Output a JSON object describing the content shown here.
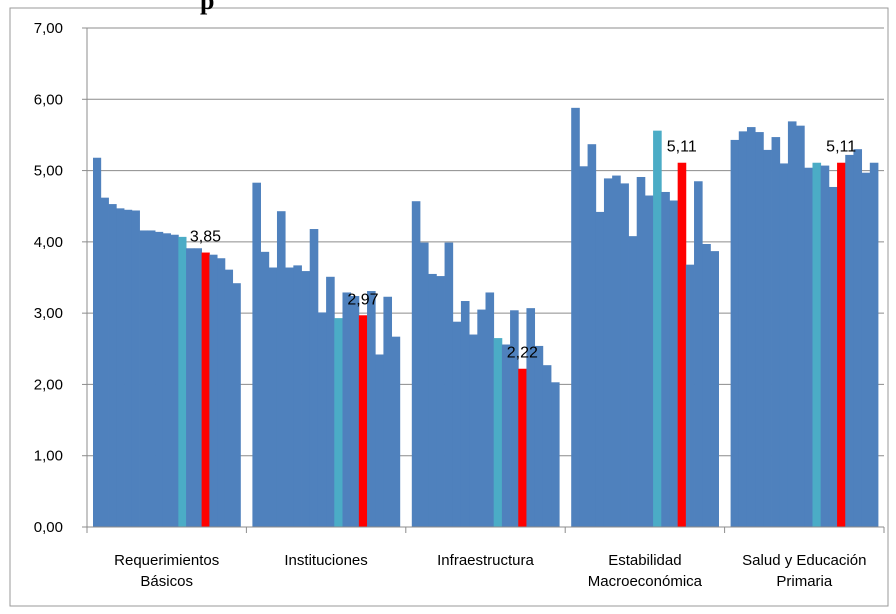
{
  "chart_data": {
    "type": "bar",
    "title": "p",
    "xlabel": "",
    "ylabel": "",
    "ylim": [
      0,
      7
    ],
    "y_ticks": [
      "0,00",
      "1,00",
      "2,00",
      "3,00",
      "4,00",
      "5,00",
      "6,00",
      "7,00"
    ],
    "grid": true,
    "legend": "none",
    "colors": {
      "default": "#4F81BD",
      "teal": "#4BACC6",
      "red": "#FF0000"
    },
    "groups": [
      {
        "label_lines": [
          "Requerimientos",
          "Básicos"
        ],
        "values": [
          5.18,
          4.62,
          4.53,
          4.47,
          4.45,
          4.44,
          4.16,
          4.16,
          4.14,
          4.12,
          4.1,
          4.07,
          3.91,
          3.91,
          3.85,
          3.82,
          3.77,
          3.61,
          3.42
        ],
        "teal_index": 11,
        "red_index": 14,
        "data_label": "3,85"
      },
      {
        "label_lines": [
          "Instituciones"
        ],
        "values": [
          4.83,
          3.86,
          3.64,
          4.43,
          3.64,
          3.67,
          3.59,
          4.18,
          3.01,
          3.51,
          2.93,
          3.29,
          3.24,
          2.97,
          3.31,
          2.42,
          3.23,
          2.67
        ],
        "teal_index": 10,
        "red_index": 13,
        "data_label": "2,97"
      },
      {
        "label_lines": [
          "Infraestructura"
        ],
        "values": [
          4.57,
          3.99,
          3.55,
          3.52,
          3.99,
          2.88,
          3.17,
          2.7,
          3.05,
          3.29,
          2.65,
          2.56,
          3.04,
          2.22,
          3.07,
          2.54,
          2.27,
          2.03
        ],
        "teal_index": 10,
        "red_index": 13,
        "data_label": "2,22"
      },
      {
        "label_lines": [
          "Estabilidad",
          "Macroeconómica"
        ],
        "values": [
          5.88,
          5.06,
          5.37,
          4.42,
          4.89,
          4.93,
          4.82,
          4.08,
          4.91,
          4.65,
          5.56,
          4.7,
          4.58,
          5.11,
          3.68,
          4.85,
          3.97,
          3.87
        ],
        "teal_index": 10,
        "red_index": 13,
        "data_label": "5,11"
      },
      {
        "label_lines": [
          "Salud y Educación",
          "Primaria"
        ],
        "values": [
          5.43,
          5.55,
          5.61,
          5.54,
          5.29,
          5.47,
          5.1,
          5.69,
          5.63,
          5.04,
          5.11,
          5.07,
          4.77,
          5.11,
          5.22,
          5.3,
          4.97,
          5.11
        ],
        "teal_index": 10,
        "red_index": 13,
        "data_label": "5,11"
      }
    ]
  }
}
